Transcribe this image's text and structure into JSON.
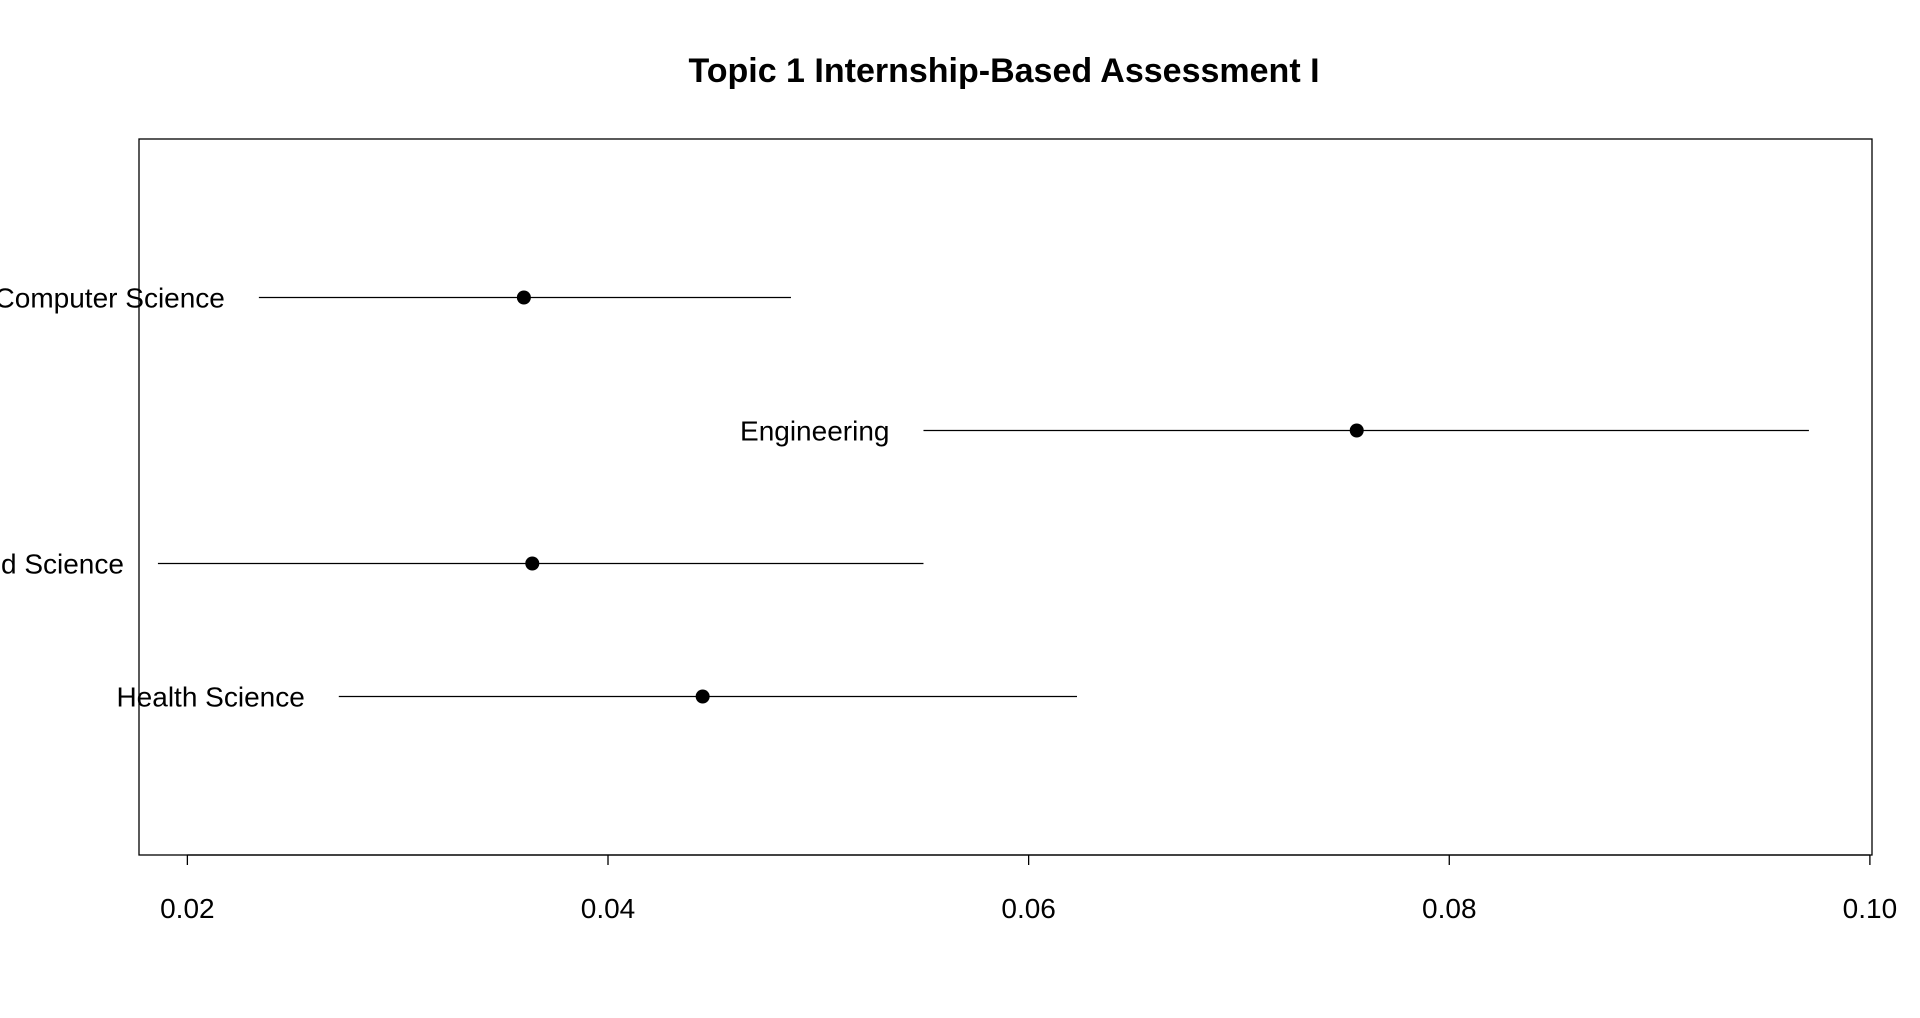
{
  "chart_data": {
    "type": "scatter",
    "subtype": "dot-plot-with-intervals",
    "title": "Topic 1 Internship-Based Assessment I",
    "xlabel": "",
    "ylabel": "",
    "xlim": [
      0.0177,
      0.1001
    ],
    "xticks": [
      0.02,
      0.04,
      0.06,
      0.08,
      0.1
    ],
    "xtick_labels": [
      "0.02",
      "0.04",
      "0.06",
      "0.08",
      "0.10"
    ],
    "grid": false,
    "legend": "none",
    "colors": {
      "line": "#000000",
      "point": "#000000",
      "frame": "#000000"
    },
    "rows": [
      {
        "label": "Computer Science",
        "point": 0.036,
        "lower": 0.0234,
        "upper": 0.0487
      },
      {
        "label": "Engineering",
        "point": 0.0756,
        "lower": 0.055,
        "upper": 0.0971
      },
      {
        "label": "Food Science",
        "point": 0.0364,
        "lower": 0.0186,
        "upper": 0.055
      },
      {
        "label": "Health Science",
        "point": 0.0445,
        "lower": 0.0272,
        "upper": 0.0623
      }
    ]
  }
}
